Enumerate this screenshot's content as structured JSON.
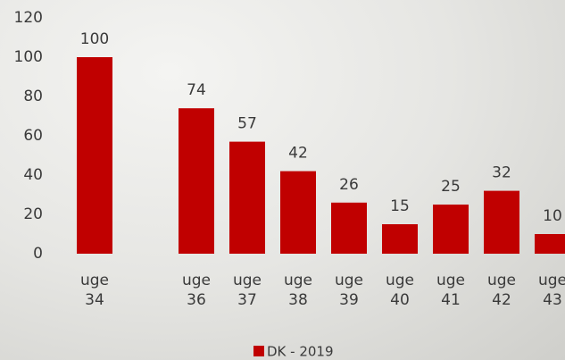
{
  "chart_data": {
    "type": "bar",
    "categories": [
      "uge 34",
      null,
      "uge 36",
      "uge 37",
      "uge 38",
      "uge 39",
      "uge 40",
      "uge 41",
      "uge 42",
      "uge 43"
    ],
    "series": [
      {
        "name": "DK - 2019",
        "color": "#c00000",
        "values": [
          100,
          null,
          74,
          57,
          42,
          26,
          15,
          25,
          32,
          10
        ]
      }
    ],
    "ylim": [
      0,
      120
    ],
    "yticks": [
      0,
      20,
      40,
      60,
      80,
      100,
      120
    ],
    "legend": "bottom"
  }
}
